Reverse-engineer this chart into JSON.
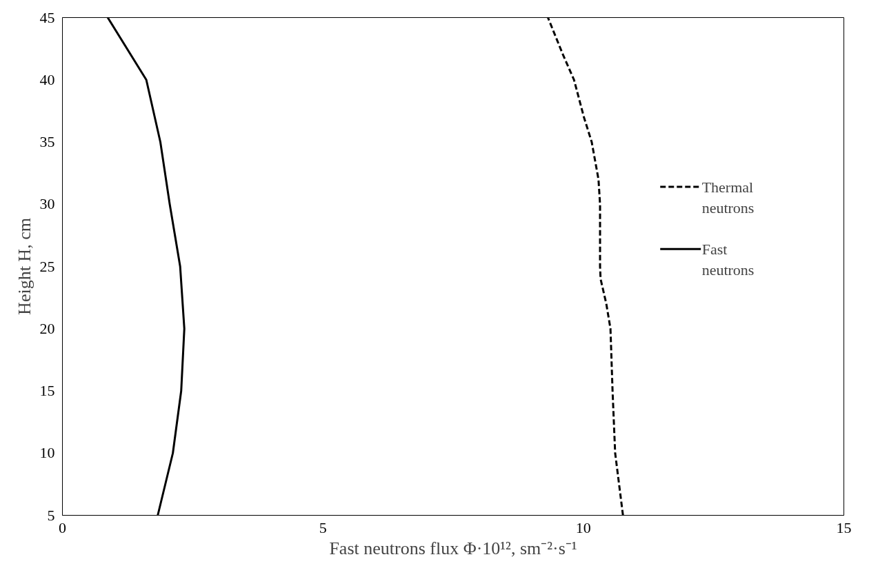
{
  "chart_data": {
    "type": "line",
    "xlabel": "Fast neutrons flux Φ·10¹², sm⁻²·s⁻¹",
    "ylabel": "Height H, cm",
    "xlim": [
      0,
      15
    ],
    "ylim": [
      5,
      45
    ],
    "xticks": [
      0,
      5,
      10,
      15
    ],
    "yticks": [
      5,
      10,
      15,
      20,
      25,
      30,
      35,
      40,
      45
    ],
    "grid": false,
    "legend": "right",
    "marker": "none",
    "series": [
      {
        "name": "Thermal neutrons",
        "color": "#000000",
        "line_style": "dashed",
        "x": [
          10.76,
          10.61,
          10.56,
          10.52,
          10.44,
          10.33,
          10.32,
          10.32,
          10.29,
          10.16,
          10.01,
          9.82,
          9.61,
          9.32
        ],
        "values": [
          5,
          10,
          15,
          20,
          22,
          24,
          25,
          30,
          32,
          35,
          37,
          40,
          42,
          45
        ]
      },
      {
        "name": "Fast neutrons",
        "color": "#000000",
        "line_style": "solid",
        "x": [
          1.83,
          2.12,
          2.28,
          2.34,
          2.26,
          2.06,
          1.88,
          1.61,
          0.87
        ],
        "values": [
          5,
          10,
          15,
          20,
          25,
          30,
          35,
          40,
          45
        ]
      }
    ]
  }
}
